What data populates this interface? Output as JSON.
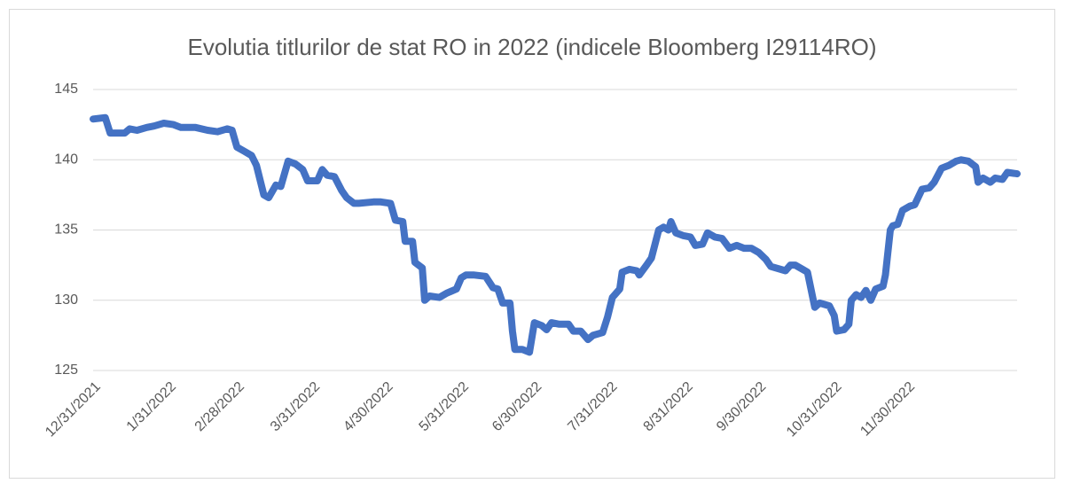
{
  "chart_data": {
    "type": "line",
    "title": "Evolutia titlurilor de stat RO in 2022 (indicele Bloomberg I29114RO)",
    "x": [
      "12/31/2021",
      "1/5/2022",
      "1/7/2022",
      "1/13/2022",
      "1/15/2022",
      "1/18/2022",
      "1/22/2022",
      "1/25/2022",
      "1/29/2022",
      "2/2/2022",
      "2/5/2022",
      "2/11/2022",
      "2/16/2022",
      "2/20/2022",
      "2/24/2022",
      "2/26/2022",
      "2/28/2022",
      "3/3/2022",
      "3/6/2022",
      "3/8/2022",
      "3/11/2022",
      "3/13/2022",
      "3/16/2022",
      "3/18/2022",
      "3/21/2022",
      "3/24/2022",
      "3/27/2022",
      "3/29/2022",
      "4/2/2022",
      "4/4/2022",
      "4/6/2022",
      "4/9/2022",
      "4/12/2022",
      "4/14/2022",
      "4/17/2022",
      "4/19/2022",
      "4/25/2022",
      "4/28/2022",
      "5/2/2022",
      "5/4/2022",
      "5/7/2022",
      "5/8/2022",
      "5/11/2022",
      "5/12/2022",
      "5/15/2022",
      "5/16/2022",
      "5/18/2022",
      "5/22/2022",
      "5/25/2022",
      "5/29/2022",
      "5/31/2022",
      "6/2/2022",
      "6/5/2022",
      "6/10/2022",
      "6/13/2022",
      "6/15/2022",
      "6/17/2022",
      "6/20/2022",
      "6/21/2022",
      "6/22/2022",
      "6/25/2022",
      "6/28/2022",
      "6/30/2022",
      "7/3/2022",
      "7/5/2022",
      "7/7/2022",
      "7/10/2022",
      "7/14/2022",
      "7/16/2022",
      "7/19/2022",
      "7/22/2022",
      "7/24/2022",
      "7/28/2022",
      "7/30/2022",
      "8/1/2022",
      "8/4/2022",
      "8/5/2022",
      "8/8/2022",
      "8/11/2022",
      "8/12/2022",
      "8/15/2022",
      "8/17/2022",
      "8/20/2022",
      "8/22/2022",
      "8/24/2022",
      "8/25/2022",
      "8/27/2022",
      "8/30/2022",
      "9/2/2022",
      "9/4/2022",
      "9/7/2022",
      "9/9/2022",
      "9/12/2022",
      "9/15/2022",
      "9/18/2022",
      "9/21/2022",
      "9/24/2022",
      "9/27/2022",
      "9/30/2022",
      "10/3/2022",
      "10/5/2022",
      "10/9/2022",
      "10/11/2022",
      "10/13/2022",
      "10/15/2022",
      "10/18/2022",
      "10/20/2022",
      "10/23/2022",
      "10/25/2022",
      "10/29/2022",
      "10/31/2022",
      "11/1/2022",
      "11/4/2022",
      "11/6/2022",
      "11/7/2022",
      "11/9/2022",
      "11/11/2022",
      "11/13/2022",
      "11/15/2022",
      "11/17/2022",
      "11/20/2022",
      "11/21/2022",
      "11/23/2022",
      "11/24/2022",
      "11/26/2022",
      "11/28/2022",
      "12/1/2022",
      "12/3/2022",
      "12/6/2022",
      "12/9/2022",
      "12/11/2022",
      "12/14/2022",
      "12/17/2022",
      "12/20/2022",
      "12/22/2022",
      "12/25/2022",
      "12/28/2022",
      "12/29/2022",
      "12/31/2022",
      "1/3/2023",
      "1/5/2023",
      "1/8/2023",
      "1/10/2023",
      "1/14/2023"
    ],
    "series": [
      {
        "name": "I29114RO",
        "color": "#4472c4",
        "values": [
          142.9,
          143.0,
          141.9,
          141.9,
          142.2,
          142.1,
          142.3,
          142.4,
          142.6,
          142.5,
          142.3,
          142.3,
          142.1,
          142.0,
          142.2,
          142.1,
          140.9,
          140.6,
          140.3,
          139.6,
          137.5,
          137.3,
          138.2,
          138.1,
          139.9,
          139.7,
          139.3,
          138.5,
          138.5,
          139.3,
          138.9,
          138.8,
          137.8,
          137.3,
          136.9,
          136.9,
          137.0,
          137.0,
          136.9,
          135.7,
          135.6,
          134.2,
          134.2,
          132.7,
          132.3,
          130.0,
          130.3,
          130.2,
          130.5,
          130.8,
          131.6,
          131.8,
          131.8,
          131.7,
          130.9,
          130.8,
          129.8,
          129.8,
          127.8,
          126.5,
          126.5,
          126.3,
          128.4,
          128.2,
          127.9,
          128.4,
          128.3,
          128.3,
          127.8,
          127.8,
          127.2,
          127.5,
          127.7,
          128.8,
          130.2,
          130.8,
          132.0,
          132.2,
          132.1,
          131.8,
          132.5,
          133.0,
          135.0,
          135.2,
          135.0,
          135.6,
          134.8,
          134.6,
          134.5,
          133.9,
          134.0,
          134.8,
          134.5,
          134.4,
          133.7,
          133.9,
          133.7,
          133.7,
          133.4,
          132.9,
          132.4,
          132.2,
          132.1,
          132.5,
          132.5,
          132.2,
          132.0,
          129.5,
          129.8,
          129.6,
          128.9,
          127.8,
          127.9,
          128.3,
          130.0,
          130.4,
          130.2,
          130.7,
          130.0,
          130.8,
          131.0,
          131.8,
          135.0,
          135.3,
          135.4,
          136.4,
          136.7,
          136.8,
          137.9,
          138.0,
          138.4,
          139.4,
          139.6,
          139.9,
          140.0,
          139.9,
          139.5,
          138.4,
          138.7,
          138.4,
          138.7,
          138.6,
          139.1,
          139.0
        ]
      }
    ],
    "xlim": [
      "12/31/2021",
      "1/14/2023"
    ],
    "xticks": [
      "12/31/2021",
      "1/31/2022",
      "2/28/2022",
      "3/31/2022",
      "4/30/2022",
      "5/31/2022",
      "6/30/2022",
      "7/31/2022",
      "8/31/2022",
      "9/30/2022",
      "10/31/2022",
      "11/30/2022"
    ],
    "ylim": [
      125,
      145
    ],
    "yticks": [
      125,
      130,
      135,
      140,
      145
    ],
    "grid": true
  }
}
